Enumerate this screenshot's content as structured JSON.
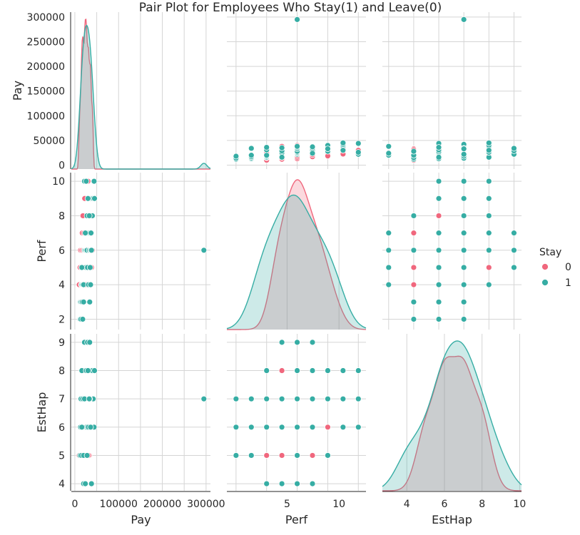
{
  "chart_data": {
    "type": "scatter",
    "title": "Pair Plot for Employees Who Stay(1) and Leave(0)",
    "variables": [
      "Pay",
      "Perf",
      "EstHap"
    ],
    "axes": {
      "Pay": {
        "range": [
          -8000,
          310000
        ],
        "ticks": [
          0,
          50000,
          100000,
          150000,
          200000,
          250000,
          300000
        ],
        "bottom_ticks": [
          0,
          100000,
          200000,
          300000
        ]
      },
      "Perf": {
        "range": [
          1.4,
          10.5
        ],
        "ticks": [
          2,
          4,
          6,
          8,
          10
        ],
        "bottom_ticks": [
          5,
          10
        ],
        "diag_range": [
          -0.8,
          12.6
        ]
      },
      "EstHap": {
        "range": [
          3.75,
          9.3
        ],
        "ticks": [
          4,
          5,
          6,
          7,
          8,
          9
        ],
        "bottom_ticks": [
          4,
          6,
          8,
          10
        ],
        "diag_range": [
          2.7,
          10.1
        ]
      }
    },
    "grid": true,
    "legend": {
      "title": "Stay",
      "placement": "right",
      "entries": [
        {
          "label": "0",
          "color": "#f0677d"
        },
        {
          "label": "1",
          "color": "#36ada4"
        }
      ]
    },
    "series": [
      {
        "name": "0",
        "color": "#f0677d",
        "points": [
          [
            10000,
            4,
            5
          ],
          [
            12000,
            5,
            6
          ],
          [
            13000,
            6,
            7
          ],
          [
            15000,
            4,
            6
          ],
          [
            15500,
            5,
            5
          ],
          [
            16000,
            6,
            7
          ],
          [
            17000,
            7,
            6
          ],
          [
            18000,
            5,
            8
          ],
          [
            19000,
            6,
            7
          ],
          [
            20000,
            4,
            6
          ],
          [
            21000,
            7,
            8
          ],
          [
            22000,
            6,
            5
          ],
          [
            23000,
            8,
            7
          ],
          [
            24000,
            5,
            6
          ],
          [
            25000,
            9,
            8
          ],
          [
            26000,
            6,
            7
          ],
          [
            27000,
            7,
            6
          ],
          [
            28000,
            8,
            7
          ],
          [
            30000,
            10,
            8
          ],
          [
            30500,
            6,
            6
          ],
          [
            32000,
            7,
            7
          ],
          [
            33000,
            4,
            5
          ],
          [
            34000,
            8,
            6
          ],
          [
            35000,
            9,
            7
          ],
          [
            36000,
            7,
            8
          ],
          [
            38000,
            5,
            6
          ],
          [
            40000,
            6,
            7
          ],
          [
            41000,
            8,
            6
          ],
          [
            22500,
            9,
            6
          ],
          [
            28500,
            5,
            7
          ],
          [
            31000,
            6,
            5
          ],
          [
            18500,
            8,
            8
          ],
          [
            26500,
            7,
            5
          ],
          [
            36500,
            6,
            8
          ],
          [
            24500,
            4,
            7
          ]
        ]
      },
      {
        "name": "1",
        "color": "#36ada4",
        "points": [
          [
            12000,
            2,
            5
          ],
          [
            13000,
            3,
            6
          ],
          [
            14000,
            2,
            7
          ],
          [
            15000,
            3,
            5
          ],
          [
            16000,
            4,
            8
          ],
          [
            17000,
            3,
            6
          ],
          [
            18000,
            4,
            7
          ],
          [
            19000,
            5,
            6
          ],
          [
            20000,
            4,
            4
          ],
          [
            21000,
            5,
            6
          ],
          [
            22000,
            6,
            9
          ],
          [
            23000,
            5,
            7
          ],
          [
            24000,
            6,
            5
          ],
          [
            25000,
            5,
            4
          ],
          [
            26000,
            6,
            8
          ],
          [
            27000,
            7,
            6
          ],
          [
            28000,
            6,
            7
          ],
          [
            29000,
            5,
            9
          ],
          [
            30000,
            7,
            7
          ],
          [
            31000,
            4,
            6
          ],
          [
            32000,
            8,
            7
          ],
          [
            33000,
            6,
            8
          ],
          [
            34000,
            7,
            9
          ],
          [
            35000,
            5,
            7
          ],
          [
            36000,
            6,
            6
          ],
          [
            37000,
            7,
            8
          ],
          [
            38000,
            8,
            7
          ],
          [
            39000,
            9,
            6
          ],
          [
            40000,
            8,
            8
          ],
          [
            42000,
            9,
            7
          ],
          [
            44000,
            10,
            6
          ],
          [
            45000,
            9,
            8
          ],
          [
            22000,
            10,
            7
          ],
          [
            26000,
            10,
            8
          ],
          [
            20000,
            3,
            5
          ],
          [
            18000,
            2,
            6
          ],
          [
            24000,
            7,
            4
          ],
          [
            28000,
            8,
            5
          ],
          [
            30000,
            9,
            8
          ],
          [
            34000,
            3,
            7
          ],
          [
            36000,
            4,
            6
          ],
          [
            38000,
            6,
            4
          ],
          [
            33000,
            8,
            7
          ],
          [
            16000,
            5,
            6
          ],
          [
            295000,
            6,
            7
          ]
        ]
      }
    ]
  }
}
